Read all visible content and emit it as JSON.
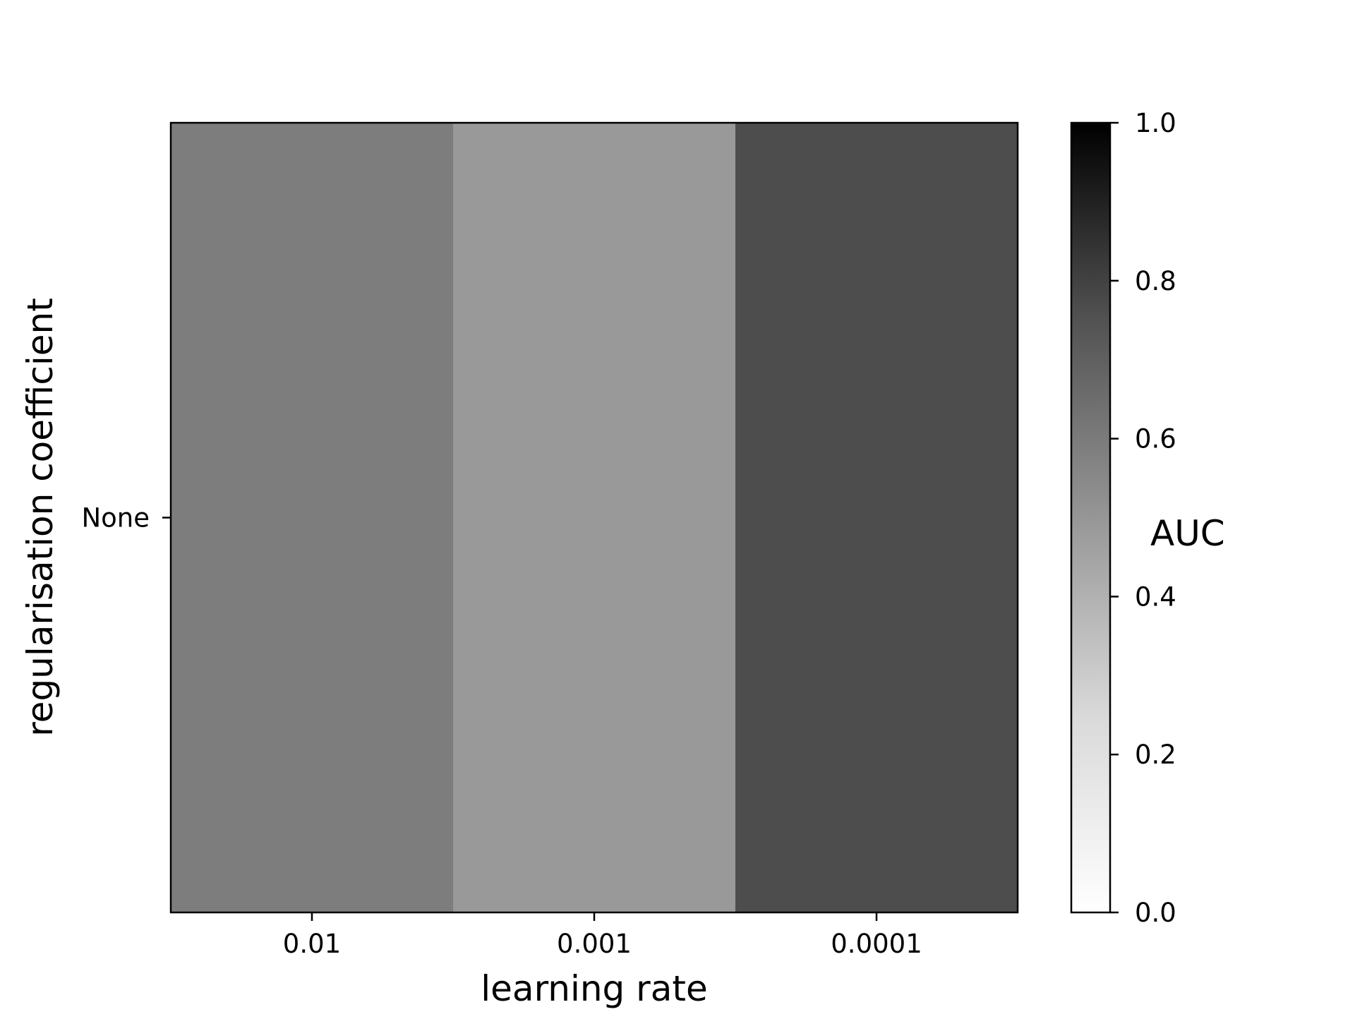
{
  "chart_data": {
    "type": "heatmap",
    "title": "",
    "xlabel": "learning rate",
    "ylabel": "regularisation coefficient",
    "x_categories": [
      "0.01",
      "0.001",
      "0.0001"
    ],
    "y_categories": [
      "None"
    ],
    "values": [
      [
        0.51,
        0.4,
        0.7
      ]
    ],
    "colormap": "Greys",
    "colorbar": {
      "label": "AUC",
      "range": [
        0.0,
        1.0
      ],
      "ticks": [
        0.0,
        0.2,
        0.4,
        0.6,
        0.8,
        1.0
      ],
      "tick_labels": [
        "0.0",
        "0.2",
        "0.4",
        "0.6",
        "0.8",
        "1.0"
      ],
      "low_color": "#ffffff",
      "high_color": "#000000"
    },
    "grid": false
  }
}
